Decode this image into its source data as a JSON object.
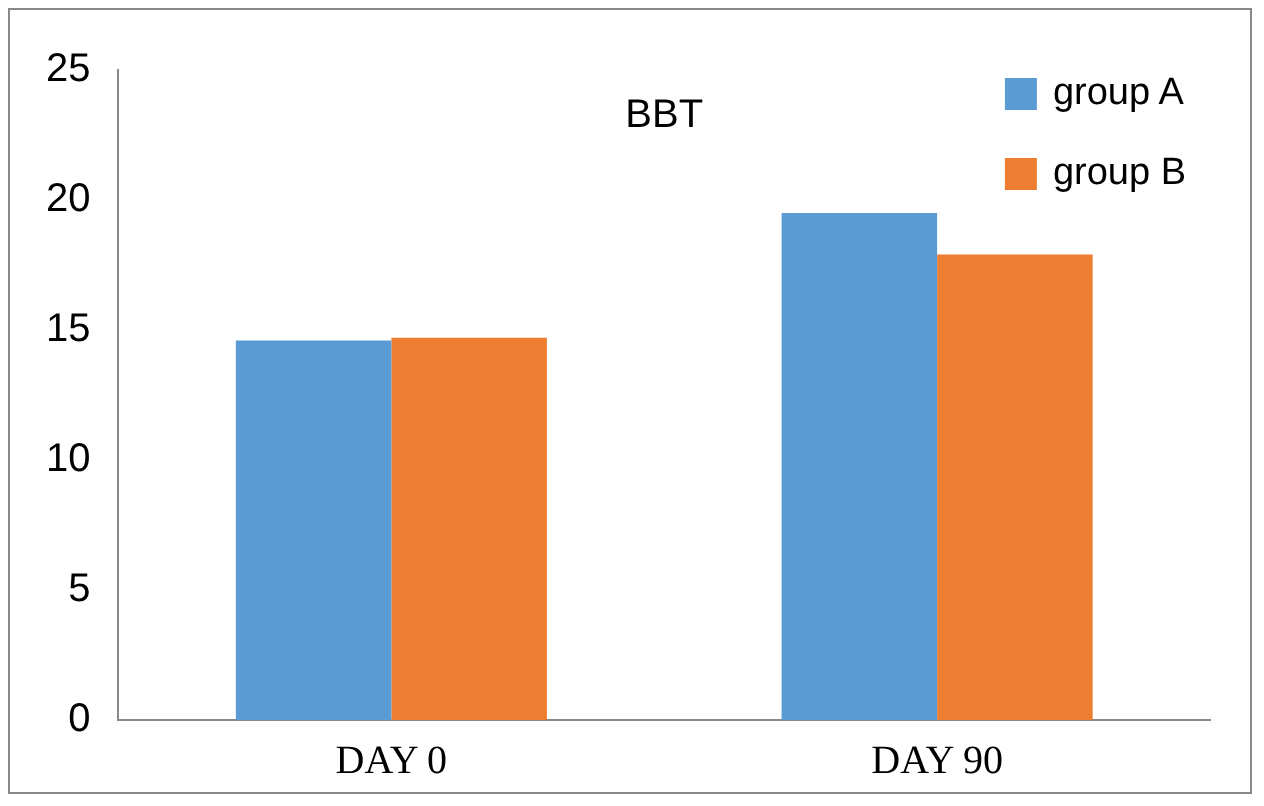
{
  "chart_data": {
    "type": "bar",
    "title": "BBT",
    "categories": [
      "DAY 0",
      "DAY 90"
    ],
    "series": [
      {
        "name": "group A",
        "color": "#5b9bd5",
        "values": [
          14.6,
          19.5
        ]
      },
      {
        "name": "group B",
        "color": "#ed7d31",
        "values": [
          14.7,
          17.9
        ]
      }
    ],
    "ylim": [
      0,
      25
    ],
    "yticks": [
      0,
      5,
      10,
      15,
      20,
      25
    ],
    "grid": false,
    "legend": "top right"
  }
}
